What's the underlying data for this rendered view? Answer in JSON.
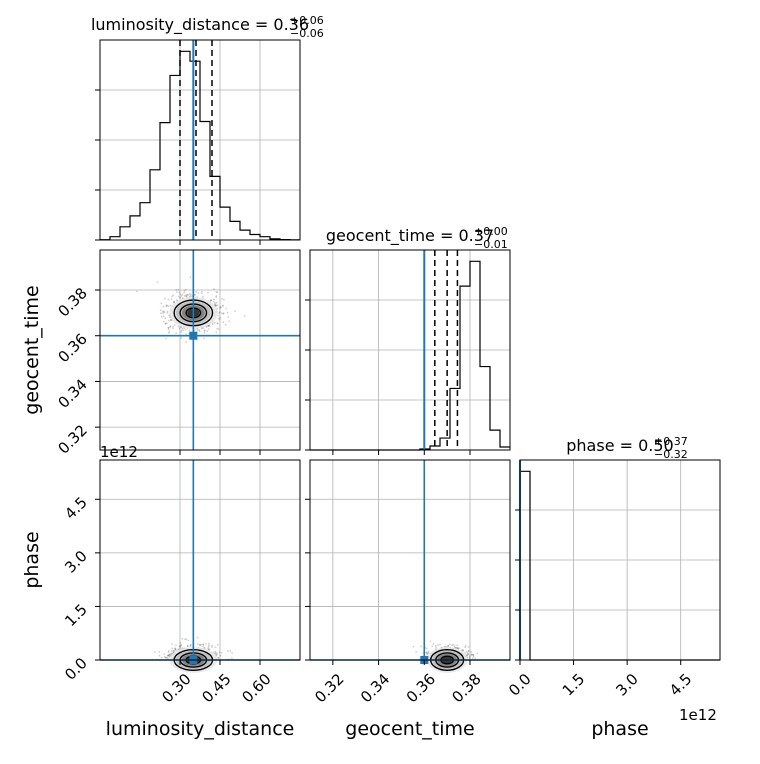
{
  "chart_data": {
    "type": "corner",
    "parameters": [
      "luminosity_distance",
      "geocent_time",
      "phase"
    ],
    "truths": {
      "luminosity_distance": 0.35,
      "geocent_time": 0.36,
      "phase": 0.0
    },
    "titles": [
      {
        "param": "luminosity_distance",
        "text": "luminosity_distance = 0.36",
        "sup": "+0.06",
        "sub": "−0.06"
      },
      {
        "param": "geocent_time",
        "text": "geocent_time = 0.37",
        "sup": "+0.00",
        "sub": "−0.01"
      },
      {
        "param": "phase",
        "text": "phase = 0.50",
        "sup": "+0.37",
        "sub": "−0.32"
      }
    ],
    "axis_labels": {
      "luminosity_distance": "luminosity_distance",
      "geocent_time": "geocent_time",
      "phase": "phase"
    },
    "offset_labels": {
      "phase_y": "1e12",
      "phase_x": "1e12"
    },
    "ticks": {
      "luminosity_distance": {
        "values": [
          0.3,
          0.45,
          0.6
        ],
        "labels": [
          "0.30",
          "0.45",
          "0.60"
        ]
      },
      "geocent_time": {
        "values": [
          0.32,
          0.34,
          0.36,
          0.38
        ],
        "labels": [
          "0.32",
          "0.34",
          "0.36",
          "0.38"
        ]
      },
      "phase": {
        "values": [
          0.0,
          1.5,
          3.0,
          4.5
        ],
        "labels": [
          "0.0",
          "1.5",
          "3.0",
          "4.5"
        ]
      }
    },
    "ranges": {
      "luminosity_distance": [
        0.0,
        0.75
      ],
      "geocent_time": [
        0.31,
        0.3975
      ],
      "phase": [
        0.0,
        5.6
      ]
    },
    "hist1d": {
      "luminosity_distance": {
        "bin_start": 0.0,
        "bin_width": 0.0375,
        "counts": [
          0.2,
          3,
          12,
          22,
          34,
          64,
          107,
          150,
          172,
          163,
          108,
          58,
          30,
          17,
          9,
          5,
          3,
          1,
          0.4,
          0.1
        ],
        "quantiles": [
          0.3,
          0.36,
          0.42
        ]
      },
      "geocent_time": {
        "bin_start": 0.31,
        "bin_width": 0.004375,
        "counts": [
          0,
          0,
          0,
          0,
          0,
          0,
          0,
          0,
          0,
          0,
          0,
          1,
          4,
          12,
          62,
          165,
          190,
          84,
          20,
          3
        ],
        "quantiles": [
          0.3646,
          0.37,
          0.3745
        ]
      },
      "phase": {
        "bin_start": 0.0,
        "bin_width": 0.28,
        "counts": [
          100,
          0,
          0,
          0,
          0,
          0,
          0,
          0,
          0,
          0,
          0,
          0,
          0,
          0,
          0,
          0,
          0,
          0,
          0,
          0
        ],
        "quantiles": []
      }
    },
    "hist2d": {
      "geocent_time_vs_luminosity_distance": {
        "center": [
          0.35,
          0.37
        ],
        "spread": [
          0.045,
          0.0035
        ]
      },
      "phase_vs_luminosity_distance": {
        "center": [
          0.35,
          0.0
        ],
        "spread": [
          0.045,
          0.18
        ]
      },
      "phase_vs_geocent_time": {
        "center": [
          0.37,
          0.0
        ],
        "spread": [
          0.0045,
          0.18
        ]
      }
    },
    "grid": true
  }
}
